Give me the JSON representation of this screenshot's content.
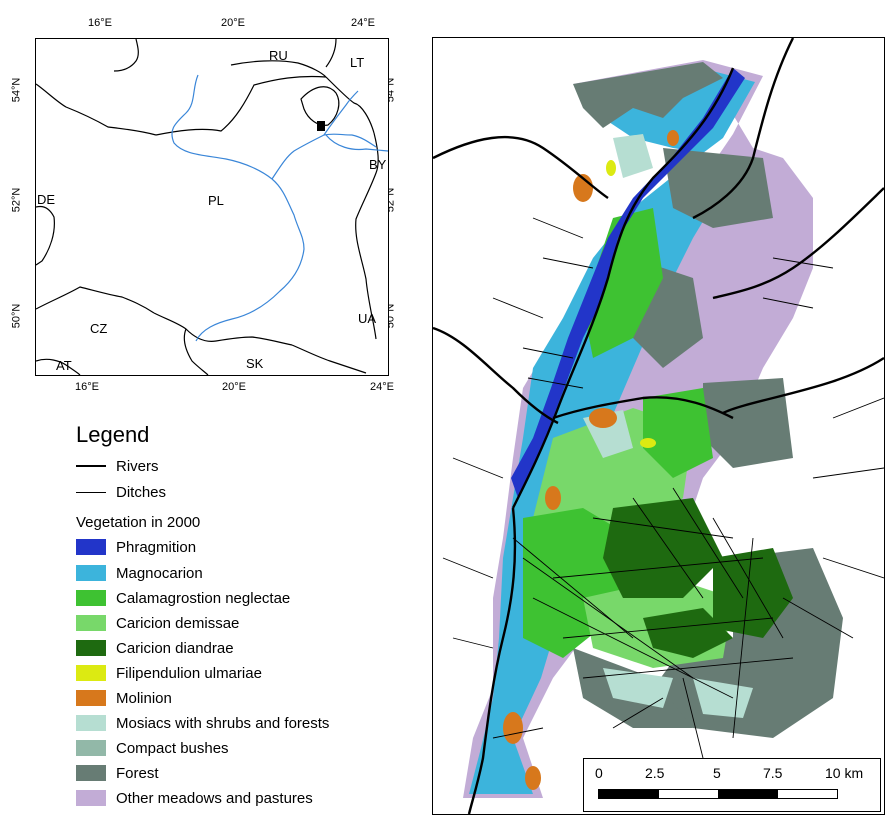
{
  "inset_map": {
    "top_ticks": [
      "16°E",
      "20°E",
      "24°E"
    ],
    "bottom_ticks": [
      "16°E",
      "20°E",
      "24°E"
    ],
    "left_ticks": [
      "54°N",
      "52°N",
      "50°N"
    ],
    "right_ticks": [
      "54°N",
      "52°N",
      "50°N"
    ],
    "countries": [
      "RU",
      "LT",
      "BY",
      "DE",
      "PL",
      "CZ",
      "UA",
      "AT",
      "SK"
    ],
    "colors": {
      "border": "#000000",
      "river": "#3a86d8",
      "study_area": "#000000"
    }
  },
  "legend": {
    "title": "Legend",
    "line_items": [
      {
        "label": "Rivers",
        "weight": "thick"
      },
      {
        "label": "Ditches",
        "weight": "thin"
      }
    ],
    "vegetation_title": "Vegetation in 2000",
    "vegetation_items": [
      {
        "label": "Phragmition",
        "color": "#2235c9"
      },
      {
        "label": "Magnocarion",
        "color": "#3cb4dc"
      },
      {
        "label": "Calamagrostion neglectae",
        "color": "#3ec232"
      },
      {
        "label": "Caricion demissae",
        "color": "#78d86a"
      },
      {
        "label": "Caricion diandrae",
        "color": "#1e6a10"
      },
      {
        "label": "Filipendulion ulmariae",
        "color": "#dcea12"
      },
      {
        "label": "Molinion",
        "color": "#d7781c"
      },
      {
        "label": "Mosiacs with shrubs and forests",
        "color": "#b6ded2"
      },
      {
        "label": "Compact bushes",
        "color": "#92b8a8"
      },
      {
        "label": "Forest",
        "color": "#677c74"
      },
      {
        "label": "Other meadows and pastures",
        "color": "#c2acd6"
      }
    ]
  },
  "scale_bar": {
    "labels": [
      "0",
      "2.5",
      "5",
      "7.5",
      "10 km"
    ]
  }
}
